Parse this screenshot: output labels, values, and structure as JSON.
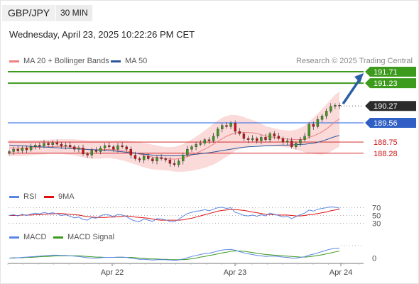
{
  "header": {
    "symbol": "GBP/JPY",
    "timeframe": "30 MIN",
    "datetime": "Wednesday, April 23, 2025 10:22:26 PM CET",
    "credit": "Research © 2025 Trading Central"
  },
  "legends": {
    "main": [
      {
        "label": "MA 20 + Bollinger Bands",
        "color": "#f08080"
      },
      {
        "label": "MA 50",
        "color": "#2a5599"
      }
    ],
    "rsi": [
      {
        "label": "RSI",
        "color": "#5b86e5"
      },
      {
        "label": "9MA",
        "color": "#dd1111"
      }
    ],
    "macd": [
      {
        "label": "MACD",
        "color": "#5b86e5"
      },
      {
        "label": "MACD Signal",
        "color": "#3c9a1c"
      }
    ]
  },
  "colors": {
    "target_green": "#3c9a1c",
    "pivot_blue": "#4a7fe8",
    "support_red": "#cc1111",
    "arrow_blue": "#2a5fa6",
    "bb_fill": "#fbdada",
    "candle_up": "#3c9a1c",
    "candle_down": "#cc1111"
  },
  "chart_data": [
    {
      "type": "candlestick",
      "x_labels": [
        "Apr 22",
        "Apr 23",
        "Apr 24"
      ],
      "current_price": 190.27,
      "levels": [
        {
          "value": 191.71,
          "label": "191.71",
          "kind": "target"
        },
        {
          "value": 191.23,
          "label": "191.23",
          "kind": "target"
        },
        {
          "value": 190.27,
          "label": "190.27",
          "kind": "last"
        },
        {
          "value": 189.56,
          "label": "189.56",
          "kind": "pivot"
        },
        {
          "value": 188.75,
          "label": "188.75",
          "kind": "support"
        },
        {
          "value": 188.28,
          "label": "188.28",
          "kind": "support"
        }
      ],
      "ylim": [
        186.9,
        191.8
      ],
      "closes": [
        188.35,
        188.45,
        188.38,
        188.5,
        188.42,
        188.55,
        188.62,
        188.58,
        188.7,
        188.64,
        188.72,
        188.66,
        188.58,
        188.62,
        188.55,
        188.45,
        188.5,
        188.25,
        188.2,
        188.4,
        188.35,
        188.5,
        188.6,
        188.55,
        188.45,
        188.6,
        188.55,
        188.45,
        188.2,
        188.05,
        188.0,
        188.15,
        188.05,
        187.95,
        188.1,
        188.05,
        188.0,
        187.85,
        187.8,
        187.95,
        188.2,
        188.45,
        188.55,
        188.65,
        188.7,
        188.85,
        188.8,
        189.0,
        189.3,
        189.45,
        189.4,
        189.55,
        189.2,
        189.1,
        188.9,
        188.85,
        188.9,
        188.8,
        188.95,
        188.85,
        189.1,
        189.0,
        188.9,
        188.75,
        188.8,
        188.55,
        188.7,
        188.85,
        189.0,
        189.5,
        189.4,
        189.7,
        189.85,
        190.05,
        190.25,
        190.3,
        190.27
      ],
      "ma20": [
        188.5,
        188.5,
        188.49,
        188.49,
        188.5,
        188.51,
        188.52,
        188.53,
        188.54,
        188.55,
        188.56,
        188.56,
        188.56,
        188.55,
        188.54,
        188.53,
        188.5,
        188.47,
        188.44,
        188.43,
        188.43,
        188.43,
        188.44,
        188.44,
        188.43,
        188.42,
        188.4,
        188.37,
        188.33,
        188.29,
        188.24,
        188.2,
        188.16,
        188.12,
        188.1,
        188.07,
        188.05,
        188.04,
        188.03,
        188.05,
        188.08,
        188.14,
        188.2,
        188.28,
        188.36,
        188.45,
        188.55,
        188.66,
        188.78,
        188.89,
        188.99,
        189.07,
        189.13,
        189.16,
        189.16,
        189.15,
        189.14,
        189.11,
        189.06,
        189.0,
        188.97,
        188.95,
        188.92,
        188.9,
        188.88,
        188.86,
        188.85,
        188.86,
        188.88,
        188.94,
        189.01,
        189.09,
        189.18,
        189.3,
        189.45,
        189.6,
        189.72
      ],
      "bb_width": [
        0.35,
        0.34,
        0.33,
        0.33,
        0.32,
        0.32,
        0.31,
        0.31,
        0.31,
        0.3,
        0.3,
        0.3,
        0.31,
        0.32,
        0.33,
        0.34,
        0.35,
        0.37,
        0.38,
        0.38,
        0.38,
        0.38,
        0.37,
        0.37,
        0.38,
        0.4,
        0.42,
        0.44,
        0.46,
        0.48,
        0.5,
        0.51,
        0.52,
        0.52,
        0.51,
        0.5,
        0.49,
        0.5,
        0.52,
        0.55,
        0.58,
        0.62,
        0.66,
        0.7,
        0.74,
        0.78,
        0.82,
        0.86,
        0.88,
        0.88,
        0.86,
        0.82,
        0.76,
        0.7,
        0.64,
        0.58,
        0.54,
        0.5,
        0.46,
        0.42,
        0.4,
        0.38,
        0.36,
        0.35,
        0.36,
        0.38,
        0.42,
        0.48,
        0.56,
        0.66,
        0.76,
        0.86,
        0.96,
        1.04,
        1.1,
        1.14,
        1.16
      ],
      "ma50": [
        188.62,
        188.61,
        188.6,
        188.59,
        188.58,
        188.57,
        188.56,
        188.55,
        188.54,
        188.53,
        188.52,
        188.51,
        188.5,
        188.49,
        188.48,
        188.47,
        188.46,
        188.45,
        188.44,
        188.43,
        188.42,
        188.41,
        188.4,
        188.39,
        188.38,
        188.36,
        188.34,
        188.32,
        188.3,
        188.28,
        188.26,
        188.24,
        188.22,
        188.2,
        188.19,
        188.18,
        188.17,
        188.17,
        188.17,
        188.18,
        188.19,
        188.2,
        188.22,
        188.24,
        188.26,
        188.28,
        188.3,
        188.33,
        188.36,
        188.39,
        188.42,
        188.45,
        188.48,
        188.51,
        188.53,
        188.55,
        188.56,
        188.57,
        188.58,
        188.59,
        188.6,
        188.61,
        188.62,
        188.62,
        188.62,
        188.63,
        188.64,
        188.65,
        188.66,
        188.68,
        188.7,
        188.74,
        188.79,
        188.85,
        188.92,
        188.98,
        189.03
      ]
    },
    {
      "type": "line",
      "name": "RSI",
      "tick_labels": [
        "70",
        "50",
        "30"
      ],
      "ticks": [
        70,
        50,
        30
      ],
      "ylim": [
        20,
        80
      ],
      "rsi": [
        50,
        52,
        49,
        53,
        50,
        54,
        56,
        54,
        58,
        55,
        57,
        54,
        50,
        52,
        48,
        44,
        46,
        40,
        38,
        45,
        43,
        49,
        53,
        51,
        47,
        53,
        51,
        47,
        40,
        36,
        35,
        41,
        38,
        35,
        42,
        41,
        39,
        35,
        34,
        40,
        48,
        55,
        58,
        61,
        62,
        65,
        62,
        66,
        70,
        71,
        68,
        70,
        58,
        55,
        50,
        49,
        51,
        48,
        52,
        49,
        56,
        53,
        50,
        46,
        48,
        42,
        47,
        52,
        56,
        64,
        61,
        66,
        68,
        70,
        72,
        71,
        69
      ],
      "ma9": [
        50,
        50,
        50,
        51,
        51,
        51,
        52,
        52,
        53,
        54,
        54,
        55,
        55,
        54,
        53,
        52,
        51,
        49,
        47,
        46,
        45,
        45,
        45,
        46,
        46,
        47,
        48,
        49,
        48,
        46,
        45,
        44,
        43,
        41,
        39,
        38,
        38,
        38,
        38,
        38,
        39,
        41,
        43,
        46,
        49,
        52,
        55,
        58,
        61,
        63,
        64,
        65,
        65,
        64,
        63,
        61,
        59,
        57,
        55,
        53,
        52,
        52,
        51,
        51,
        51,
        50,
        49,
        49,
        50,
        52,
        53,
        55,
        57,
        59,
        62,
        64,
        66
      ]
    },
    {
      "type": "line",
      "name": "MACD",
      "tick_labels": [
        "0"
      ],
      "ticks": [
        0
      ],
      "ylim": [
        -0.1,
        0.45
      ],
      "macd": [
        0.0,
        0.01,
        0.01,
        0.02,
        0.03,
        0.04,
        0.05,
        0.06,
        0.07,
        0.08,
        0.09,
        0.09,
        0.08,
        0.08,
        0.07,
        0.06,
        0.05,
        0.03,
        0.01,
        0.0,
        0.0,
        0.01,
        0.02,
        0.02,
        0.02,
        0.03,
        0.03,
        0.02,
        0.0,
        -0.02,
        -0.04,
        -0.04,
        -0.05,
        -0.06,
        -0.05,
        -0.05,
        -0.05,
        -0.06,
        -0.07,
        -0.06,
        -0.03,
        0.01,
        0.05,
        0.08,
        0.11,
        0.14,
        0.15,
        0.18,
        0.22,
        0.25,
        0.26,
        0.27,
        0.24,
        0.2,
        0.16,
        0.13,
        0.11,
        0.08,
        0.07,
        0.05,
        0.06,
        0.06,
        0.05,
        0.03,
        0.02,
        0.0,
        0.0,
        0.02,
        0.04,
        0.09,
        0.12,
        0.16,
        0.2,
        0.24,
        0.28,
        0.3,
        0.31
      ],
      "signal": [
        0.0,
        0.0,
        0.01,
        0.01,
        0.02,
        0.02,
        0.03,
        0.04,
        0.05,
        0.05,
        0.06,
        0.07,
        0.07,
        0.07,
        0.07,
        0.07,
        0.07,
        0.06,
        0.05,
        0.04,
        0.03,
        0.03,
        0.02,
        0.02,
        0.02,
        0.02,
        0.02,
        0.02,
        0.02,
        0.01,
        0.0,
        -0.01,
        -0.02,
        -0.03,
        -0.03,
        -0.04,
        -0.04,
        -0.05,
        -0.05,
        -0.05,
        -0.05,
        -0.04,
        -0.02,
        0.0,
        0.03,
        0.05,
        0.08,
        0.1,
        0.13,
        0.16,
        0.18,
        0.21,
        0.22,
        0.22,
        0.21,
        0.19,
        0.17,
        0.15,
        0.13,
        0.11,
        0.1,
        0.09,
        0.08,
        0.07,
        0.06,
        0.05,
        0.04,
        0.03,
        0.03,
        0.04,
        0.06,
        0.08,
        0.1,
        0.13,
        0.16,
        0.19,
        0.22
      ]
    }
  ]
}
